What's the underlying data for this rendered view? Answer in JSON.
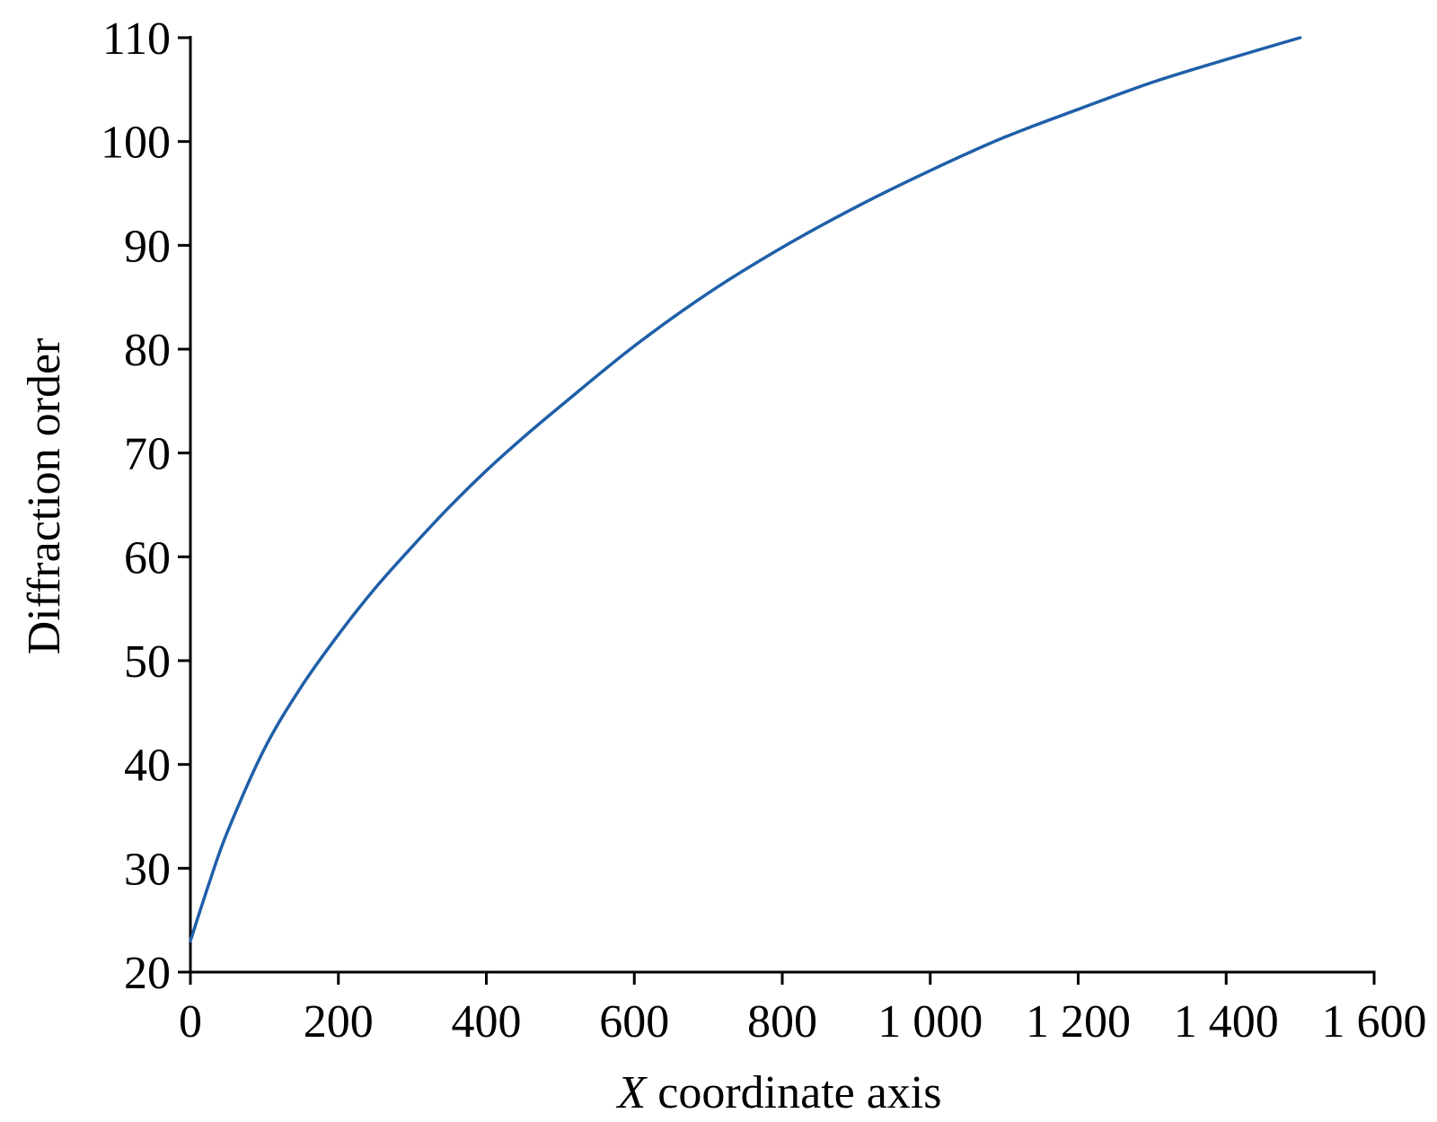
{
  "chart_data": {
    "type": "line",
    "title": "",
    "xlabel_var": "X",
    "xlabel_rest": " coordinate axis",
    "ylabel": "Diffraction order",
    "xlim": [
      0,
      1600
    ],
    "ylim": [
      20,
      110
    ],
    "x_ticks": [
      0,
      200,
      400,
      600,
      800,
      1000,
      1200,
      1400,
      1600
    ],
    "x_tick_labels": [
      "0",
      "200",
      "400",
      "600",
      "800",
      "1 000",
      "1 200",
      "1 400",
      "1 600"
    ],
    "y_ticks": [
      20,
      30,
      40,
      50,
      60,
      70,
      80,
      90,
      100,
      110
    ],
    "y_tick_labels": [
      "20",
      "30",
      "40",
      "50",
      "60",
      "70",
      "80",
      "90",
      "100",
      "110"
    ],
    "grid": false,
    "line_color": "#1f5fa8",
    "series": [
      {
        "x": [
          0,
          25,
          50,
          100,
          150,
          200,
          250,
          300,
          350,
          400,
          450,
          500,
          600,
          700,
          800,
          900,
          1000,
          1100,
          1200,
          1300,
          1400,
          1500
        ],
        "y": [
          23,
          28.5,
          33.5,
          41.5,
          47.5,
          52.5,
          57,
          61,
          64.8,
          68.3,
          71.5,
          74.5,
          80.3,
          85.4,
          89.8,
          93.7,
          97.2,
          100.4,
          103.1,
          105.7,
          107.9,
          110
        ]
      }
    ]
  }
}
